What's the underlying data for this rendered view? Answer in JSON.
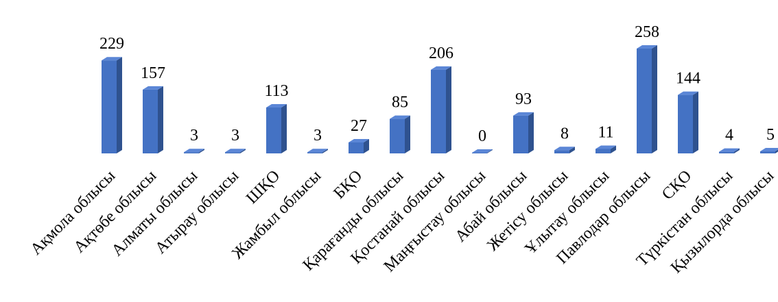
{
  "chart_data": {
    "type": "bar",
    "categories": [
      "Ақмола облысы",
      "Ақтөбе облысы",
      "Алматы облысы",
      "Атырау облысы",
      "ШҚО",
      "Жамбыл облысы",
      "БҚО",
      "Қарағанды облысы",
      "Қостанай облысы",
      "Маңғыстау облысы",
      "Абай облысы",
      "Жетісу облысы",
      "Ұлытау облысы",
      "Павлодар облысы",
      "СҚО",
      "Түркістан облысы",
      "Қызылорда облысы"
    ],
    "values": [
      229,
      157,
      3,
      3,
      113,
      3,
      27,
      85,
      206,
      0,
      93,
      8,
      11,
      258,
      144,
      4,
      5
    ],
    "value_labels": [
      "229",
      "157",
      "3",
      "3",
      "113",
      "3",
      "27",
      "85",
      "206",
      "0",
      "93",
      "8",
      "11",
      "258",
      "144",
      "4",
      "5"
    ],
    "title": "",
    "xlabel": "",
    "ylabel": "",
    "ylim": [
      0,
      258
    ],
    "grid": false,
    "legend": "none",
    "colors": {
      "bar_front": "#4472c4",
      "bar_side": "#2f528f",
      "bar_top": "#5b86d6"
    }
  }
}
